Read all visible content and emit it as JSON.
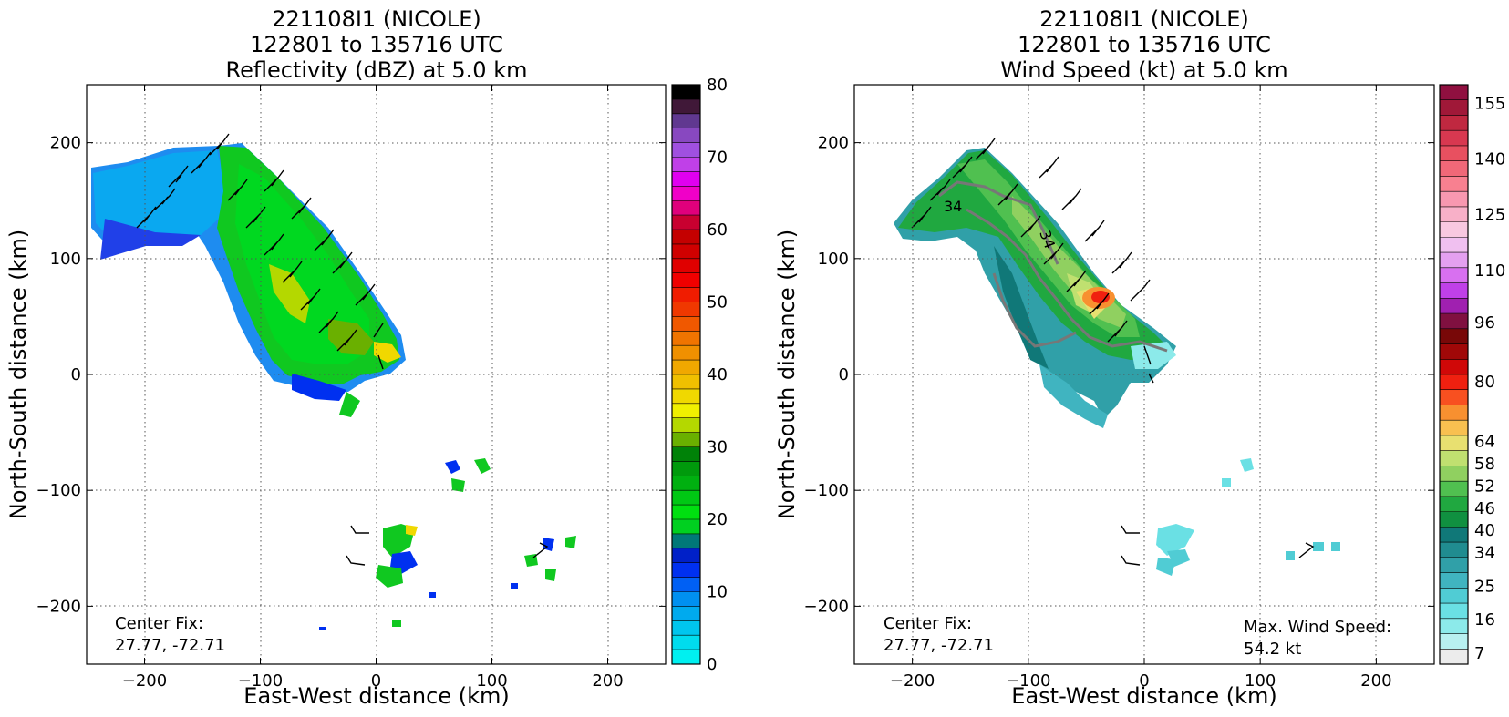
{
  "chart_data": [
    {
      "type": "heatmap",
      "title": [
        "221108I1 (NICOLE)",
        "122801 to 135716 UTC",
        "Reflectivity (dBZ) at 5.0 km"
      ],
      "xlabel": "East-West distance (km)",
      "ylabel": "North-South distance (km)",
      "xlim": [
        -250,
        250
      ],
      "ylim": [
        -250,
        250
      ],
      "xticks": [
        -200,
        -100,
        0,
        100,
        200
      ],
      "yticks": [
        -200,
        -100,
        0,
        100,
        200
      ],
      "xtick_labels": [
        "−200",
        "−100",
        "0",
        "100",
        "200"
      ],
      "ytick_labels": [
        "−200",
        "−100",
        "0",
        "100",
        "200"
      ],
      "grid": true,
      "colorbar": {
        "min": 0,
        "max": 80,
        "tick_values": [
          0,
          10,
          20,
          30,
          40,
          50,
          60,
          70,
          80
        ],
        "tick_labels": [
          "0",
          "10",
          "20",
          "30",
          "40",
          "50",
          "60",
          "70",
          "80"
        ],
        "colors": [
          "#00f0f0",
          "#00dcee",
          "#00c6ee",
          "#00aaee",
          "#0090f0",
          "#0060f4",
          "#0030f0",
          "#0020c8",
          "#007878",
          "#00d020",
          "#00e010",
          "#00c814",
          "#00b010",
          "#009a0c",
          "#008208",
          "#6ab000",
          "#b4d800",
          "#f0f000",
          "#f0d800",
          "#f0c000",
          "#f0a800",
          "#f09000",
          "#f07400",
          "#f05800",
          "#f03800",
          "#f01c00",
          "#f00000",
          "#e00000",
          "#d00000",
          "#c40000",
          "#c80030",
          "#e0007c",
          "#f000c8",
          "#e000f0",
          "#c040e8",
          "#a050e0",
          "#8848c0",
          "#603890",
          "#401838",
          "#000000"
        ]
      },
      "center_fix_label": "Center Fix:",
      "center_fix_value": "27.77, -72.71",
      "center_fix": [
        -72.71,
        27.77
      ]
    },
    {
      "type": "heatmap",
      "title": [
        "221108I1 (NICOLE)",
        "122801 to 135716 UTC",
        "Wind Speed (kt) at 5.0 km"
      ],
      "xlabel": "East-West distance (km)",
      "ylabel": "North-South distance (km)",
      "xlim": [
        -250,
        250
      ],
      "ylim": [
        -250,
        250
      ],
      "xticks": [
        -200,
        -100,
        0,
        100,
        200
      ],
      "yticks": [
        -200,
        -100,
        0,
        100,
        200
      ],
      "xtick_labels": [
        "−200",
        "−100",
        "0",
        "100",
        "200"
      ],
      "ytick_labels": [
        "−200",
        "−100",
        "0",
        "100",
        "200"
      ],
      "grid": true,
      "contour_labels": [
        "34",
        "34"
      ],
      "colorbar": {
        "min": 4,
        "max": 160,
        "tick_values": [
          7,
          16,
          25,
          34,
          40,
          46,
          52,
          58,
          64,
          80,
          96,
          110,
          125,
          140,
          155
        ],
        "tick_labels": [
          "7",
          "16",
          "25",
          "34",
          "40",
          "46",
          "52",
          "58",
          "64",
          "80",
          "96",
          "110",
          "125",
          "140",
          "155"
        ],
        "colors": [
          "#ececec",
          "#b8f0f0",
          "#8ceaea",
          "#6ae0e4",
          "#50ccd4",
          "#40b4c0",
          "#30a0a8",
          "#208c90",
          "#107878",
          "#109040",
          "#20a840",
          "#50c050",
          "#90d060",
          "#c0e070",
          "#e8e070",
          "#f8c050",
          "#f89030",
          "#f85020",
          "#f02010",
          "#d00808",
          "#a00808",
          "#780808",
          "#801040",
          "#a020b0",
          "#c040e8",
          "#d870f0",
          "#e4a0f0",
          "#f0c0f0",
          "#f8c8e0",
          "#f8b0c8",
          "#f898b0",
          "#f88090",
          "#f06878",
          "#e85060",
          "#d83850",
          "#c02840",
          "#a01838",
          "#901040"
        ]
      },
      "center_fix_label": "Center Fix:",
      "center_fix_value": "27.77, -72.71",
      "center_fix": [
        -72.71,
        27.77
      ],
      "max_wind_label": "Max. Wind Speed:",
      "max_wind_value": "54.2 kt",
      "max_wind_speed": 54.2
    }
  ]
}
